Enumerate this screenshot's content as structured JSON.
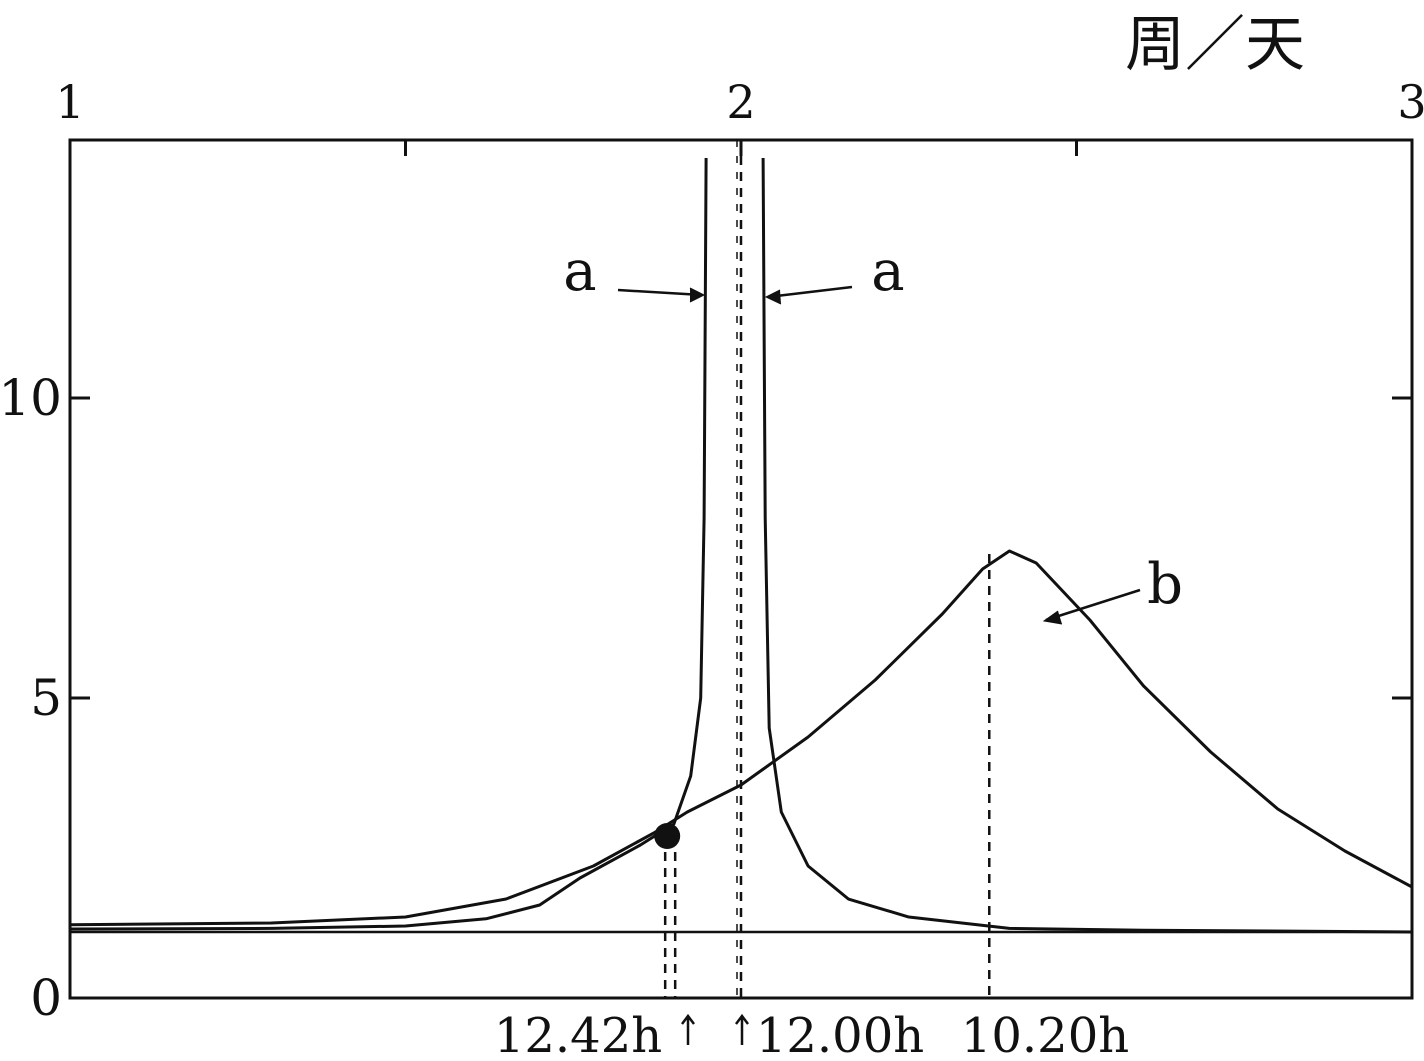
{
  "chart_data": {
    "type": "line",
    "title": "",
    "top_axis": {
      "label": "周／天",
      "range": [
        1,
        3
      ],
      "ticks": [
        {
          "value": 1,
          "label": "1"
        },
        {
          "value": 2,
          "label": "2"
        },
        {
          "value": 3,
          "label": "3"
        }
      ]
    },
    "y_axis": {
      "range": [
        0,
        14.3
      ],
      "ticks": [
        {
          "value": 0,
          "label": "0"
        },
        {
          "value": 5,
          "label": "5"
        },
        {
          "value": 10,
          "label": "10"
        }
      ]
    },
    "grid": false,
    "series": [
      {
        "label": "a",
        "style": "solid",
        "branches": [
          [
            [
              1.0,
              1.15
            ],
            [
              1.3,
              1.16
            ],
            [
              1.5,
              1.2
            ],
            [
              1.62,
              1.32
            ],
            [
              1.7,
              1.55
            ],
            [
              1.76,
              2.0
            ],
            [
              1.85,
              2.55
            ],
            [
              1.9,
              2.9
            ],
            [
              1.925,
              3.7
            ],
            [
              1.94,
              5.0
            ],
            [
              1.945,
              8.0
            ],
            [
              1.948,
              14.0
            ]
          ],
          [
            [
              2.033,
              14.0
            ],
            [
              2.036,
              8.0
            ],
            [
              2.042,
              4.5
            ],
            [
              2.06,
              3.1
            ],
            [
              2.1,
              2.2
            ],
            [
              2.16,
              1.65
            ],
            [
              2.25,
              1.35
            ],
            [
              2.4,
              1.16
            ],
            [
              2.6,
              1.13
            ],
            [
              3.0,
              1.1
            ]
          ]
        ]
      },
      {
        "label": "b",
        "style": "solid",
        "points": [
          [
            1.0,
            1.22
          ],
          [
            1.3,
            1.25
          ],
          [
            1.5,
            1.35
          ],
          [
            1.65,
            1.65
          ],
          [
            1.78,
            2.2
          ],
          [
            1.87,
            2.75
          ],
          [
            1.92,
            3.1
          ],
          [
            2.0,
            3.55
          ],
          [
            2.1,
            4.35
          ],
          [
            2.2,
            5.3
          ],
          [
            2.3,
            6.4
          ],
          [
            2.36,
            7.15
          ],
          [
            2.4,
            7.45
          ],
          [
            2.44,
            7.25
          ],
          [
            2.52,
            6.3
          ],
          [
            2.6,
            5.2
          ],
          [
            2.7,
            4.1
          ],
          [
            2.8,
            3.15
          ],
          [
            2.9,
            2.45
          ],
          [
            3.0,
            1.85
          ]
        ]
      }
    ],
    "baseline": {
      "value": 1.1
    },
    "intersection_point": {
      "x": 1.89,
      "y": 2.7
    },
    "reference_lines": [
      {
        "x": 1.887,
        "style": "dashed",
        "label": "12.42h"
      },
      {
        "x": 2.0,
        "style": "dashed",
        "label": "12.00h"
      },
      {
        "x": 2.37,
        "style": "dashed",
        "label": "10.20h"
      }
    ],
    "annotations": [
      {
        "text": "a",
        "target_series": "a",
        "side": "left"
      },
      {
        "text": "a",
        "target_series": "a",
        "side": "right"
      },
      {
        "text": "b",
        "target_series": "b",
        "side": "right"
      }
    ]
  }
}
